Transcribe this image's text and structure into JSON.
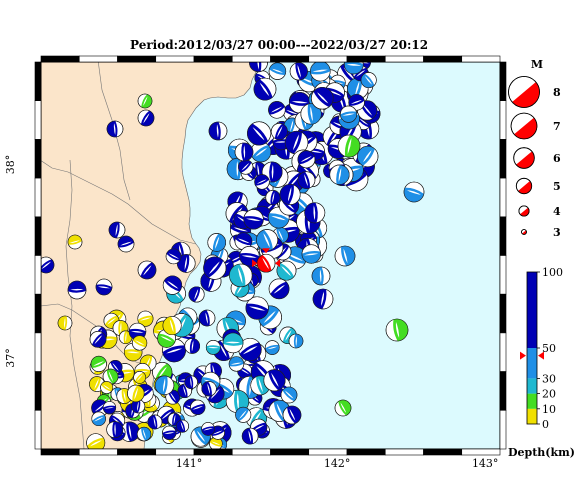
{
  "title": "Period:2012/03/27 00:00---2022/03/27 20:12",
  "map": {
    "lon_range": [
      140.0,
      143.1
    ],
    "lat_range": [
      36.53,
      38.53
    ],
    "lon_ticks": [
      141,
      142,
      143
    ],
    "lat_ticks": [
      37,
      38
    ],
    "lon_tick_labels": [
      "141°",
      "142°",
      "143°"
    ],
    "lat_tick_labels": [
      "37°",
      "38°"
    ],
    "land_color": "#fbe5ca",
    "sea_color": "#dcfafe",
    "highlight_event": {
      "lon": 141.52,
      "lat": 37.49,
      "mag": 4.5,
      "color": "#ff0000"
    }
  },
  "magnitude_legend": {
    "header": "M",
    "items": [
      {
        "mag": 8,
        "label": "8"
      },
      {
        "mag": 7,
        "label": "7"
      },
      {
        "mag": 6,
        "label": "6"
      },
      {
        "mag": 5,
        "label": "5"
      },
      {
        "mag": 4,
        "label": "4"
      },
      {
        "mag": 3,
        "label": "3"
      }
    ]
  },
  "depth_legend": {
    "title": "Depth(km)",
    "ticks": [
      "100",
      "50",
      "30",
      "20",
      "10",
      "0"
    ],
    "colors": {
      "very_deep": "#0000b4",
      "deep": "#1f8fe6",
      "mid": "#1fb8d0",
      "shallow_mid": "#22c870",
      "shallow": "#44dd22",
      "surface": "#f0e000"
    },
    "marker_value": 45
  }
}
